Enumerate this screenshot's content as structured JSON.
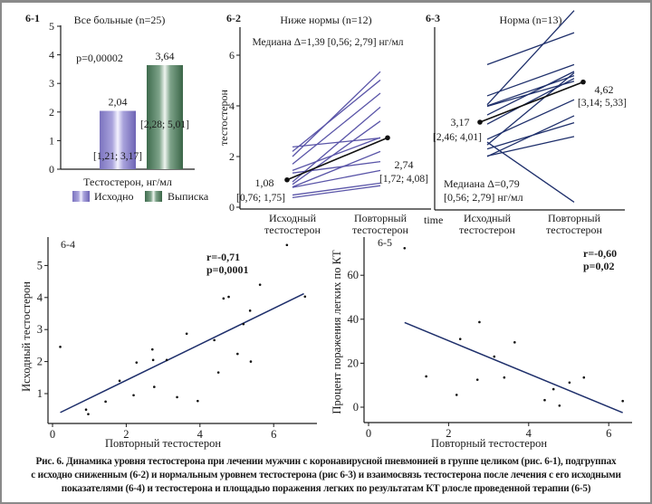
{
  "colors": {
    "baseline_bar": "#8b84c6",
    "discharge_bar": "#4f7d5e",
    "low_lines": "#5a55a8",
    "norm_lines": "#1e2f6b",
    "median_line": "#111111",
    "regression": "#1e2f6b",
    "axis": "#1a1a1a"
  },
  "chart_data": [
    {
      "id": "6-1",
      "type": "bar",
      "panel_label": "6-1",
      "title": "Все больные (n=25)",
      "xlabel": "Тестостерон, нг/мл",
      "ylabel": "",
      "ylim": [
        0,
        5
      ],
      "yticks": [
        "0",
        "1",
        "2",
        "3",
        "4",
        "5"
      ],
      "categories": [
        "Исходно",
        "Выписка"
      ],
      "values": [
        2.04,
        3.64
      ],
      "value_labels": [
        "2,04",
        "3,64"
      ],
      "interval_labels": [
        "[1,21; 3,17]",
        "[2,28; 5,01]"
      ],
      "annotation": "p=0,00002",
      "legend": [
        "Исходно",
        "Выписка"
      ],
      "legend_position": "bottom"
    },
    {
      "id": "6-2",
      "type": "line",
      "panel_label": "6-2",
      "title": "Ниже нормы (n=12)",
      "ylabel": "тестостерон",
      "ylim": [
        0,
        7
      ],
      "yticks": [
        "0",
        "2",
        "4",
        "6"
      ],
      "x": [
        "Исходный тестостерон",
        "Повторный тестостерон"
      ],
      "x_label_lines": [
        [
          "Исходный",
          "тестостерон"
        ],
        [
          "Повторный",
          "тестостерон"
        ]
      ],
      "annotation": "Медиана Δ=1,39 [0,56; 2,79] нг/мл",
      "series": [
        {
          "name": "p1",
          "values": [
            2.38,
            2.73
          ]
        },
        {
          "name": "p2",
          "values": [
            2.2,
            5.02
          ]
        },
        {
          "name": "p3",
          "values": [
            2.0,
            5.35
          ]
        },
        {
          "name": "p4",
          "values": [
            1.7,
            4.5
          ]
        },
        {
          "name": "p5",
          "values": [
            1.45,
            2.75
          ]
        },
        {
          "name": "p6",
          "values": [
            1.35,
            1.8
          ]
        },
        {
          "name": "p7",
          "values": [
            1.0,
            3.95
          ]
        },
        {
          "name": "p8",
          "values": [
            0.9,
            3.4
          ]
        },
        {
          "name": "p9",
          "values": [
            0.8,
            2.2
          ]
        },
        {
          "name": "p10",
          "values": [
            0.78,
            1.45
          ]
        },
        {
          "name": "p11",
          "values": [
            0.48,
            0.95
          ]
        },
        {
          "name": "p12",
          "values": [
            0.38,
            0.85
          ]
        }
      ],
      "median": {
        "values": [
          1.08,
          2.74
        ],
        "labels": [
          "1,08",
          "2,74"
        ],
        "intervals": [
          "[0,76; 1,75]",
          "[1,72; 4,08]"
        ]
      },
      "extra_label": "time"
    },
    {
      "id": "6-3",
      "type": "line",
      "panel_label": "6-3",
      "title": "Норма (n=13)",
      "ylabel": "",
      "ylim": [
        0,
        7
      ],
      "x": [
        "Исходный тестостерон",
        "Повторный тестостерон"
      ],
      "x_label_lines": [
        [
          "Исходный",
          "тестостерон"
        ],
        [
          "Повторный",
          "тестостерон"
        ]
      ],
      "annotation_lines": [
        "Медиана Δ=0,79",
        "[0,56; 2,79] нг/мл"
      ],
      "series": [
        {
          "name": "n1",
          "values": [
            5.25,
            6.4
          ]
        },
        {
          "name": "n2",
          "values": [
            4.12,
            5.25
          ]
        },
        {
          "name": "n3",
          "values": [
            3.8,
            7.2
          ]
        },
        {
          "name": "n4",
          "values": [
            3.76,
            4.85
          ]
        },
        {
          "name": "n5",
          "values": [
            3.74,
            4.65
          ]
        },
        {
          "name": "n6",
          "values": [
            3.43,
            5.0
          ]
        },
        {
          "name": "n7",
          "values": [
            3.1,
            4.75
          ]
        },
        {
          "name": "n8",
          "values": [
            2.55,
            3.98
          ]
        },
        {
          "name": "n9",
          "values": [
            2.35,
            4.95
          ]
        },
        {
          "name": "n10",
          "values": [
            2.2,
            3.15
          ]
        },
        {
          "name": "n11",
          "values": [
            1.95,
            2.65
          ]
        },
        {
          "name": "n12",
          "values": [
            1.93,
            3.4
          ]
        },
        {
          "name": "n13",
          "values": [
            2.45,
            0.28
          ]
        }
      ],
      "median": {
        "values": [
          3.17,
          4.62
        ],
        "labels": [
          "3,17",
          "4,62"
        ],
        "intervals": [
          "[2,46; 4,01]",
          "[3,14; 5,33]"
        ]
      }
    },
    {
      "id": "6-4",
      "type": "scatter",
      "panel_label": "6-4",
      "xlabel": "Повторный тестостерон",
      "ylabel": "Исходный тестостерон",
      "xlim": [
        0,
        7.0
      ],
      "ylim": [
        0,
        5.9
      ],
      "xticks": [
        0,
        2,
        4,
        6
      ],
      "yticks": [
        1,
        2,
        3,
        4,
        5
      ],
      "annotation_lines": [
        "r=-0,71",
        "p=0,0001"
      ],
      "points": [
        [
          0.21,
          2.46
        ],
        [
          0.91,
          0.5
        ],
        [
          0.97,
          0.36
        ],
        [
          1.44,
          0.75
        ],
        [
          1.82,
          1.4
        ],
        [
          2.2,
          0.95
        ],
        [
          2.28,
          1.97
        ],
        [
          2.71,
          2.38
        ],
        [
          2.73,
          2.05
        ],
        [
          2.76,
          1.21
        ],
        [
          3.1,
          2.05
        ],
        [
          3.38,
          0.89
        ],
        [
          3.64,
          2.87
        ],
        [
          3.94,
          0.77
        ],
        [
          4.39,
          2.67
        ],
        [
          4.5,
          1.66
        ],
        [
          4.64,
          3.97
        ],
        [
          4.78,
          4.02
        ],
        [
          5.02,
          2.24
        ],
        [
          5.18,
          3.17
        ],
        [
          5.36,
          3.59
        ],
        [
          5.38,
          2.0
        ],
        [
          5.63,
          4.4
        ],
        [
          6.36,
          5.64
        ],
        [
          6.85,
          4.03
        ]
      ],
      "regression": [
        [
          0.21,
          0.41
        ],
        [
          6.82,
          4.12
        ]
      ]
    },
    {
      "id": "6-5",
      "type": "scatter",
      "panel_label": "6-5",
      "xlabel": "Повторный тестостерон",
      "ylabel": "Процент поражения легких по КТ",
      "xlim": [
        0,
        6.6
      ],
      "ylim": [
        -7,
        76
      ],
      "xticks": [
        0,
        2,
        4,
        6
      ],
      "yticks": [
        0,
        20,
        40,
        60
      ],
      "annotation_lines": [
        "r=-0,60",
        "p=0,02"
      ],
      "points": [
        [
          0.9,
          72.3
        ],
        [
          1.44,
          14
        ],
        [
          2.2,
          5.6
        ],
        [
          2.29,
          31
        ],
        [
          2.72,
          12.5
        ],
        [
          2.77,
          38.7
        ],
        [
          3.14,
          23
        ],
        [
          3.39,
          13.5
        ],
        [
          3.65,
          29.5
        ],
        [
          4.4,
          3.2
        ],
        [
          4.62,
          8.2
        ],
        [
          4.77,
          0.7
        ],
        [
          5.02,
          11.2
        ],
        [
          5.38,
          13.5
        ],
        [
          6.35,
          2.8
        ]
      ],
      "regression": [
        [
          0.9,
          38.5
        ],
        [
          6.35,
          -2.5
        ]
      ]
    }
  ],
  "caption": {
    "lines": [
      "Рис. 6. Динамика уровня тестостерона при лечении мужчин с коронавирусной пневмонией в группе целиком (рис. 6-1), подгруппах",
      "с исходно сниженным (6-2) и нормальным уровнем тестостерона (рис 6-3) и взаимосвязь тестостерона после лечения с его исходными",
      "показателями (6-4) и тестостерона и площадью поражения легких по результатам КТ рлосле проведенной терапии (6-5)"
    ]
  }
}
